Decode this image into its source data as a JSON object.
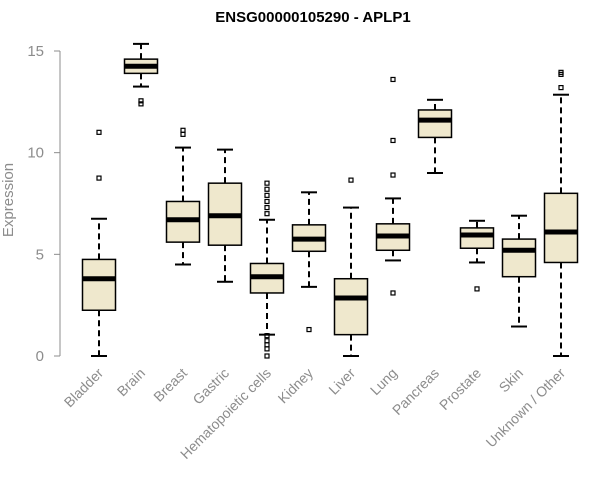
{
  "chart_data": {
    "type": "boxplot",
    "title": "ENSG00000105290 - APLP1",
    "ylabel": "Expression",
    "xlabel": "",
    "ylim": [
      0,
      15.5
    ],
    "yticks": [
      0,
      5,
      10,
      15
    ],
    "box_fill": "#efe8cd",
    "stroke_color": "#000000",
    "axis_color": "#8c8c8c",
    "categories": [
      "Bladder",
      "Brain",
      "Breast",
      "Gastric",
      "Hematopoietic cells",
      "Kidney",
      "Liver",
      "Lung",
      "Pancreas",
      "Prostate",
      "Skin",
      "Unknown / Other"
    ],
    "boxes": [
      {
        "whisker_low": 0.0,
        "q1": 2.25,
        "median": 3.8,
        "q3": 4.75,
        "whisker_high": 6.75,
        "outliers": [
          8.75,
          11.0
        ]
      },
      {
        "whisker_low": 13.25,
        "q1": 13.9,
        "median": 14.25,
        "q3": 14.6,
        "whisker_high": 15.35,
        "outliers": [
          12.4,
          12.55
        ]
      },
      {
        "whisker_low": 4.5,
        "q1": 5.6,
        "median": 6.7,
        "q3": 7.6,
        "whisker_high": 10.25,
        "outliers": [
          10.9,
          11.1
        ]
      },
      {
        "whisker_low": 3.65,
        "q1": 5.45,
        "median": 6.9,
        "q3": 8.5,
        "whisker_high": 10.15,
        "outliers": []
      },
      {
        "whisker_low": 1.05,
        "q1": 3.1,
        "median": 3.9,
        "q3": 4.55,
        "whisker_high": 6.7,
        "outliers": [
          0.0,
          0.35,
          0.55,
          0.75,
          1.0,
          7.0,
          7.3,
          7.6,
          7.9,
          8.2,
          8.5
        ]
      },
      {
        "whisker_low": 3.4,
        "q1": 5.15,
        "median": 5.75,
        "q3": 6.45,
        "whisker_high": 8.05,
        "outliers": [
          1.3
        ]
      },
      {
        "whisker_low": 0.0,
        "q1": 1.05,
        "median": 2.85,
        "q3": 3.8,
        "whisker_high": 7.3,
        "outliers": [
          8.65
        ]
      },
      {
        "whisker_low": 4.7,
        "q1": 5.2,
        "median": 5.9,
        "q3": 6.5,
        "whisker_high": 7.75,
        "outliers": [
          3.1,
          8.9,
          10.6,
          13.6
        ]
      },
      {
        "whisker_low": 9.0,
        "q1": 10.75,
        "median": 11.6,
        "q3": 12.1,
        "whisker_high": 12.6,
        "outliers": []
      },
      {
        "whisker_low": 4.6,
        "q1": 5.3,
        "median": 5.95,
        "q3": 6.3,
        "whisker_high": 6.65,
        "outliers": [
          3.3
        ]
      },
      {
        "whisker_low": 1.45,
        "q1": 3.9,
        "median": 5.2,
        "q3": 5.75,
        "whisker_high": 6.9,
        "outliers": []
      },
      {
        "whisker_low": 0.0,
        "q1": 4.6,
        "median": 6.1,
        "q3": 8.0,
        "whisker_high": 12.85,
        "outliers": [
          13.2,
          13.85,
          13.95
        ]
      }
    ]
  }
}
